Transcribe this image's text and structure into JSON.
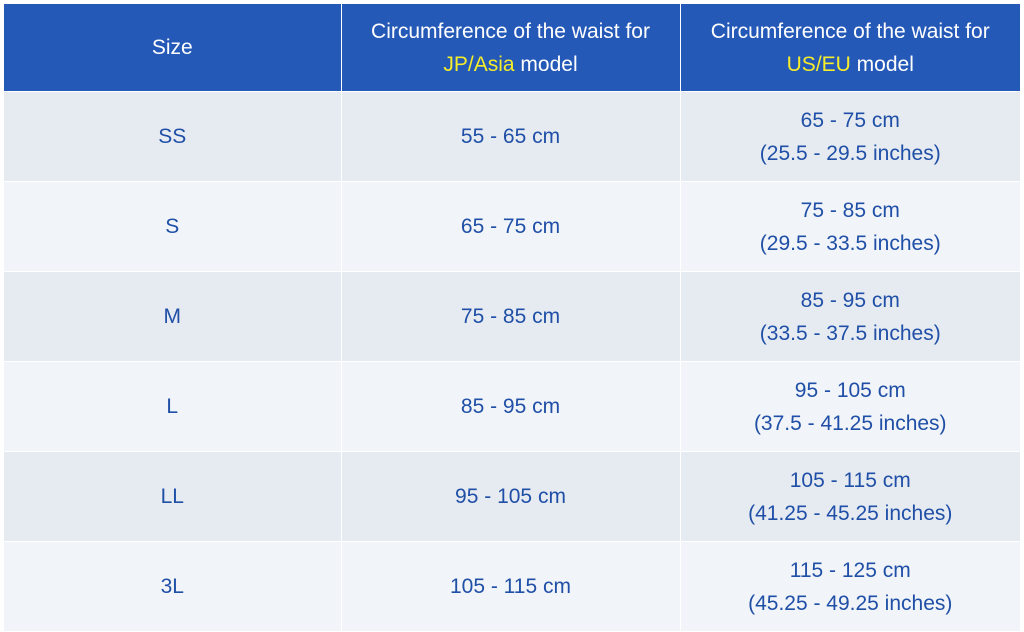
{
  "header": {
    "size": "Size",
    "jp": {
      "line1": "Circumference of the waist for",
      "highlight": "JP/Asia",
      "suffix": " model"
    },
    "us": {
      "line1": "Circumference of the waist for",
      "highlight": "US/EU",
      "suffix": " model"
    }
  },
  "colors": {
    "header_bg": "#2559b8",
    "header_text": "#ffffff",
    "highlight": "#f5ec2a",
    "body_text": "#1f4fa6",
    "row_odd": "#e6ebf2",
    "row_even": "#f1f4f8"
  },
  "rows": [
    {
      "size": "SS",
      "jp": "55 - 65 cm",
      "us_cm": "65 - 75 cm",
      "us_in": "(25.5 - 29.5 inches)"
    },
    {
      "size": "S",
      "jp": "65 - 75 cm",
      "us_cm": "75 - 85 cm",
      "us_in": "(29.5 - 33.5 inches)"
    },
    {
      "size": "M",
      "jp": "75 - 85 cm",
      "us_cm": "85 - 95 cm",
      "us_in": "(33.5 - 37.5 inches)"
    },
    {
      "size": "L",
      "jp": "85 - 95 cm",
      "us_cm": "95 - 105 cm",
      "us_in": "(37.5 - 41.25 inches)"
    },
    {
      "size": "LL",
      "jp": "95 - 105 cm",
      "us_cm": "105 - 115 cm",
      "us_in": "(41.25 - 45.25 inches)"
    },
    {
      "size": "3L",
      "jp": "105 - 115 cm",
      "us_cm": "115 - 125 cm",
      "us_in": "(45.25 - 49.25 inches)"
    }
  ]
}
